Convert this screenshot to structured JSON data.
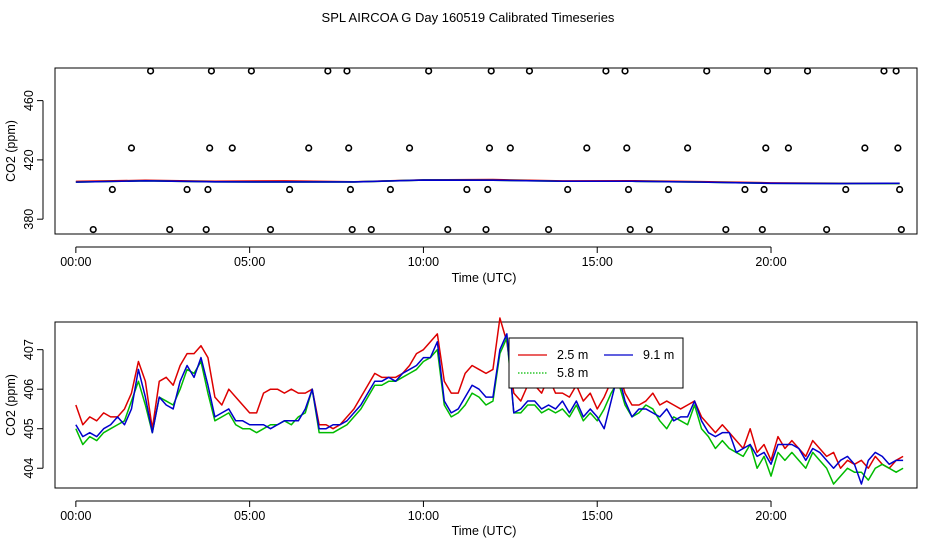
{
  "title": "SPL AIRCOA G  Day 160519  Calibrated Timeseries",
  "chart_data": [
    {
      "type": "scatter",
      "xlabel": "Time (UTC)",
      "ylabel": "CO2 (ppm)",
      "xlim": [
        -0.6,
        24.2
      ],
      "ylim": [
        370,
        482
      ],
      "xticks": [
        0,
        5,
        10,
        15,
        20
      ],
      "xtick_labels": [
        "00:00",
        "05:00",
        "10:00",
        "15:00",
        "20:00"
      ],
      "yticks": [
        380,
        420,
        460
      ],
      "ytick_labels": [
        "380",
        "420",
        "460"
      ],
      "colors": {
        "2.5 m": "#dd0000",
        "5.8 m": "#00bb00",
        "9.1 m": "#0000cc"
      },
      "points": [
        [
          0.5,
          373
        ],
        [
          1.05,
          400
        ],
        [
          1.6,
          428
        ],
        [
          2.15,
          480
        ],
        [
          2.7,
          373
        ],
        [
          3.2,
          400
        ],
        [
          3.75,
          373
        ],
        [
          3.8,
          400
        ],
        [
          3.85,
          428
        ],
        [
          3.9,
          480
        ],
        [
          4.5,
          428
        ],
        [
          5.05,
          480
        ],
        [
          5.6,
          373
        ],
        [
          6.15,
          400
        ],
        [
          6.7,
          428
        ],
        [
          7.25,
          480
        ],
        [
          7.8,
          480
        ],
        [
          7.85,
          428
        ],
        [
          7.9,
          400
        ],
        [
          7.95,
          373
        ],
        [
          8.5,
          373
        ],
        [
          9.05,
          400
        ],
        [
          9.6,
          428
        ],
        [
          10.15,
          480
        ],
        [
          10.7,
          373
        ],
        [
          11.25,
          400
        ],
        [
          11.8,
          373
        ],
        [
          11.85,
          400
        ],
        [
          11.9,
          428
        ],
        [
          11.95,
          480
        ],
        [
          12.5,
          428
        ],
        [
          13.05,
          480
        ],
        [
          13.6,
          373
        ],
        [
          14.15,
          400
        ],
        [
          14.7,
          428
        ],
        [
          15.25,
          480
        ],
        [
          15.8,
          480
        ],
        [
          15.85,
          428
        ],
        [
          15.9,
          400
        ],
        [
          15.95,
          373
        ],
        [
          16.5,
          373
        ],
        [
          17.05,
          400
        ],
        [
          17.6,
          428
        ],
        [
          18.15,
          480
        ],
        [
          18.7,
          373
        ],
        [
          19.25,
          400
        ],
        [
          19.75,
          373
        ],
        [
          19.8,
          400
        ],
        [
          19.85,
          428
        ],
        [
          19.9,
          480
        ],
        [
          20.5,
          428
        ],
        [
          21.05,
          480
        ],
        [
          21.6,
          373
        ],
        [
          22.15,
          400
        ],
        [
          22.7,
          428
        ],
        [
          23.25,
          480
        ],
        [
          23.6,
          480
        ],
        [
          23.65,
          428
        ],
        [
          23.7,
          400
        ],
        [
          23.75,
          373
        ]
      ],
      "series": [
        {
          "name": "2.5 m",
          "x": [
            0,
            2,
            4,
            6,
            8,
            10,
            12,
            14,
            16,
            18,
            20,
            22,
            23.7
          ],
          "y": [
            405.5,
            406.2,
            405.6,
            405.8,
            405.2,
            406.5,
            406.7,
            405.8,
            405.9,
            405.3,
            404.5,
            404.2,
            404.2
          ]
        },
        {
          "name": "5.8 m",
          "x": [
            0,
            2,
            4,
            6,
            8,
            10,
            12,
            14,
            16,
            18,
            20,
            22,
            23.7
          ],
          "y": [
            405,
            405.9,
            405.2,
            405.1,
            405.1,
            406.4,
            406.3,
            405.6,
            405.6,
            405,
            404.2,
            404,
            404
          ]
        },
        {
          "name": "9.1 m",
          "x": [
            0,
            2,
            4,
            6,
            8,
            10,
            12,
            14,
            16,
            18,
            20,
            22,
            23.7
          ],
          "y": [
            405,
            405.9,
            405.2,
            405.1,
            405.1,
            406.4,
            406.3,
            405.6,
            405.6,
            405,
            404.2,
            404,
            404.2
          ]
        }
      ]
    },
    {
      "type": "line",
      "xlabel": "Time (UTC)",
      "ylabel": "CO2 (ppm)",
      "xlim": [
        -0.6,
        24.2
      ],
      "ylim": [
        403.5,
        407.7
      ],
      "xticks": [
        0,
        5,
        10,
        15,
        20
      ],
      "xtick_labels": [
        "00:00",
        "05:00",
        "10:00",
        "15:00",
        "20:00"
      ],
      "yticks": [
        404,
        405,
        406,
        407
      ],
      "ytick_labels": [
        "404",
        "405",
        "406",
        "407"
      ],
      "legend": "top-center",
      "series": [
        {
          "name": "2.5 m",
          "color": "#dd0000",
          "x": [
            0,
            0.2,
            0.4,
            0.6,
            0.8,
            1.0,
            1.2,
            1.4,
            1.6,
            1.8,
            2.0,
            2.2,
            2.4,
            2.6,
            2.8,
            3.0,
            3.2,
            3.4,
            3.6,
            3.8,
            4.0,
            4.2,
            4.4,
            4.6,
            4.8,
            5.0,
            5.2,
            5.4,
            5.6,
            5.8,
            6.0,
            6.2,
            6.4,
            6.6,
            6.8,
            7.0,
            7.2,
            7.4,
            7.6,
            7.8,
            8.0,
            8.2,
            8.4,
            8.6,
            8.8,
            9.0,
            9.2,
            9.4,
            9.6,
            9.8,
            10.0,
            10.2,
            10.4,
            10.6,
            10.8,
            11.0,
            11.2,
            11.4,
            11.6,
            11.8,
            12.0,
            12.2,
            12.4,
            12.6,
            12.8,
            13.0,
            13.2,
            13.4,
            13.6,
            13.8,
            14.0,
            14.2,
            14.4,
            14.6,
            14.8,
            15.0,
            15.2,
            15.4,
            15.6,
            15.8,
            16.0,
            16.2,
            16.4,
            16.6,
            16.8,
            17.0,
            17.2,
            17.4,
            17.6,
            17.8,
            18.0,
            18.2,
            18.4,
            18.6,
            18.8,
            19.0,
            19.2,
            19.4,
            19.6,
            19.8,
            20.0,
            20.2,
            20.4,
            20.6,
            20.8,
            21.0,
            21.2,
            21.4,
            21.6,
            21.8,
            22.0,
            22.2,
            22.4,
            22.6,
            22.8,
            23.0,
            23.2,
            23.4,
            23.6,
            23.8
          ],
          "y": [
            405.6,
            405.1,
            405.3,
            405.2,
            405.4,
            405.3,
            405.3,
            405.5,
            405.9,
            406.7,
            406.2,
            405.0,
            406.2,
            406.3,
            406.1,
            406.6,
            406.9,
            406.9,
            407.1,
            406.8,
            405.8,
            405.6,
            406.0,
            405.8,
            405.6,
            405.4,
            405.4,
            405.9,
            406.0,
            406.0,
            405.9,
            406.0,
            405.9,
            405.9,
            406.0,
            405.1,
            405.1,
            405.0,
            405.1,
            405.3,
            405.5,
            405.8,
            406.1,
            406.4,
            406.3,
            406.3,
            406.3,
            406.4,
            406.6,
            406.9,
            407.0,
            407.2,
            407.4,
            406.2,
            405.9,
            405.9,
            406.4,
            406.6,
            406.5,
            406.4,
            406.5,
            407.8,
            407.2,
            405.9,
            405.7,
            406.1,
            406.1,
            405.9,
            406.3,
            405.9,
            405.9,
            405.8,
            406.1,
            405.7,
            405.9,
            405.5,
            405.8,
            406.2,
            406.5,
            405.9,
            405.6,
            405.6,
            405.7,
            405.9,
            405.6,
            405.7,
            405.6,
            405.5,
            405.6,
            405.7,
            405.3,
            405.1,
            404.9,
            405.1,
            404.9,
            404.7,
            404.5,
            405.0,
            404.4,
            404.6,
            404.2,
            404.8,
            404.5,
            404.7,
            404.5,
            404.3,
            404.7,
            404.5,
            404.3,
            404.4,
            404.0,
            404.2,
            404.1,
            404.2,
            404.0,
            404.3,
            404.1,
            404.0,
            404.2,
            404.3
          ]
        },
        {
          "name": "5.8 m",
          "color": "#00bb00",
          "x": [
            0,
            0.2,
            0.4,
            0.6,
            0.8,
            1.0,
            1.2,
            1.4,
            1.6,
            1.8,
            2.0,
            2.2,
            2.4,
            2.6,
            2.8,
            3.0,
            3.2,
            3.4,
            3.6,
            3.8,
            4.0,
            4.2,
            4.4,
            4.6,
            4.8,
            5.0,
            5.2,
            5.4,
            5.6,
            5.8,
            6.0,
            6.2,
            6.4,
            6.6,
            6.8,
            7.0,
            7.2,
            7.4,
            7.6,
            7.8,
            8.0,
            8.2,
            8.4,
            8.6,
            8.8,
            9.0,
            9.2,
            9.4,
            9.6,
            9.8,
            10.0,
            10.2,
            10.4,
            10.6,
            10.8,
            11.0,
            11.2,
            11.4,
            11.6,
            11.8,
            12.0,
            12.2,
            12.4,
            12.6,
            12.8,
            13.0,
            13.2,
            13.4,
            13.6,
            13.8,
            14.0,
            14.2,
            14.4,
            14.6,
            14.8,
            15.0,
            15.2,
            15.4,
            15.6,
            15.8,
            16.0,
            16.2,
            16.4,
            16.6,
            16.8,
            17.0,
            17.2,
            17.4,
            17.6,
            17.8,
            18.0,
            18.2,
            18.4,
            18.6,
            18.8,
            19.0,
            19.2,
            19.4,
            19.6,
            19.8,
            20.0,
            20.2,
            20.4,
            20.6,
            20.8,
            21.0,
            21.2,
            21.4,
            21.6,
            21.8,
            22.0,
            22.2,
            22.4,
            22.6,
            22.8,
            23.0,
            23.2,
            23.4,
            23.6,
            23.8
          ],
          "y": [
            405.0,
            404.6,
            404.8,
            404.7,
            404.9,
            405.0,
            405.1,
            405.2,
            405.7,
            406.2,
            405.6,
            404.9,
            405.8,
            405.7,
            405.6,
            406.0,
            406.5,
            406.4,
            406.7,
            405.9,
            405.2,
            405.3,
            405.4,
            405.1,
            405.0,
            405.0,
            404.9,
            405.0,
            405.1,
            405.1,
            405.2,
            405.1,
            405.3,
            405.4,
            406.0,
            404.9,
            404.9,
            404.9,
            405.0,
            405.1,
            405.3,
            405.5,
            405.8,
            406.1,
            406.1,
            406.2,
            406.2,
            406.3,
            406.4,
            406.5,
            406.7,
            406.8,
            407.0,
            405.6,
            405.3,
            405.4,
            405.6,
            405.9,
            405.8,
            405.6,
            405.7,
            406.9,
            407.3,
            405.4,
            405.4,
            405.6,
            405.6,
            405.4,
            405.5,
            405.4,
            405.5,
            405.3,
            405.6,
            405.2,
            405.4,
            405.2,
            405.5,
            405.9,
            406.2,
            405.6,
            405.3,
            405.4,
            405.6,
            405.5,
            405.2,
            405.0,
            405.3,
            405.2,
            405.1,
            405.6,
            405.0,
            404.8,
            404.5,
            404.7,
            404.5,
            404.4,
            404.3,
            404.6,
            404.0,
            404.3,
            403.8,
            404.4,
            404.2,
            404.4,
            404.2,
            404.0,
            404.4,
            404.2,
            404.0,
            403.6,
            403.8,
            404.0,
            403.9,
            403.9,
            403.7,
            404.0,
            404.1,
            404.0,
            403.9,
            404.0
          ]
        },
        {
          "name": "9.1 m",
          "color": "#0000cc",
          "x": [
            0,
            0.2,
            0.4,
            0.6,
            0.8,
            1.0,
            1.2,
            1.4,
            1.6,
            1.8,
            2.0,
            2.2,
            2.4,
            2.6,
            2.8,
            3.0,
            3.2,
            3.4,
            3.6,
            3.8,
            4.0,
            4.2,
            4.4,
            4.6,
            4.8,
            5.0,
            5.2,
            5.4,
            5.6,
            5.8,
            6.0,
            6.2,
            6.4,
            6.6,
            6.8,
            7.0,
            7.2,
            7.4,
            7.6,
            7.8,
            8.0,
            8.2,
            8.4,
            8.6,
            8.8,
            9.0,
            9.2,
            9.4,
            9.6,
            9.8,
            10.0,
            10.2,
            10.4,
            10.6,
            10.8,
            11.0,
            11.2,
            11.4,
            11.6,
            11.8,
            12.0,
            12.2,
            12.4,
            12.6,
            12.8,
            13.0,
            13.2,
            13.4,
            13.6,
            13.8,
            14.0,
            14.2,
            14.4,
            14.6,
            14.8,
            15.0,
            15.2,
            15.4,
            15.6,
            15.8,
            16.0,
            16.2,
            16.4,
            16.6,
            16.8,
            17.0,
            17.2,
            17.4,
            17.6,
            17.8,
            18.0,
            18.2,
            18.4,
            18.6,
            18.8,
            19.0,
            19.2,
            19.4,
            19.6,
            19.8,
            20.0,
            20.2,
            20.4,
            20.6,
            20.8,
            21.0,
            21.2,
            21.4,
            21.6,
            21.8,
            22.0,
            22.2,
            22.4,
            22.6,
            22.8,
            23.0,
            23.2,
            23.4,
            23.6,
            23.8
          ],
          "y": [
            405.1,
            404.8,
            404.9,
            404.8,
            405.0,
            405.1,
            405.3,
            405.1,
            405.5,
            406.5,
            405.8,
            404.9,
            405.8,
            405.6,
            405.5,
            406.2,
            406.6,
            406.3,
            406.8,
            406.1,
            405.3,
            405.4,
            405.5,
            405.2,
            405.2,
            405.1,
            405.1,
            405.1,
            405.0,
            405.1,
            405.2,
            405.2,
            405.2,
            405.5,
            406.0,
            405.0,
            405.0,
            405.1,
            405.1,
            405.2,
            405.4,
            405.6,
            405.9,
            406.2,
            406.2,
            406.3,
            406.2,
            406.4,
            406.5,
            406.6,
            406.8,
            406.8,
            407.2,
            405.7,
            405.4,
            405.5,
            405.8,
            406.1,
            406.0,
            405.8,
            405.8,
            407.0,
            407.4,
            405.4,
            405.5,
            405.7,
            405.7,
            405.5,
            405.6,
            405.5,
            405.7,
            405.4,
            405.7,
            405.3,
            405.5,
            405.3,
            405.0,
            405.7,
            406.4,
            405.7,
            405.3,
            405.5,
            405.5,
            405.4,
            405.3,
            405.5,
            405.2,
            405.3,
            405.3,
            405.7,
            405.2,
            404.9,
            404.8,
            404.9,
            404.9,
            404.4,
            404.5,
            404.6,
            404.3,
            404.4,
            404.1,
            404.6,
            404.6,
            404.6,
            404.5,
            404.2,
            404.5,
            404.4,
            404.2,
            404.0,
            404.2,
            404.3,
            404.1,
            403.6,
            404.2,
            404.4,
            404.3,
            404.1,
            404.2,
            404.2
          ]
        }
      ]
    }
  ]
}
